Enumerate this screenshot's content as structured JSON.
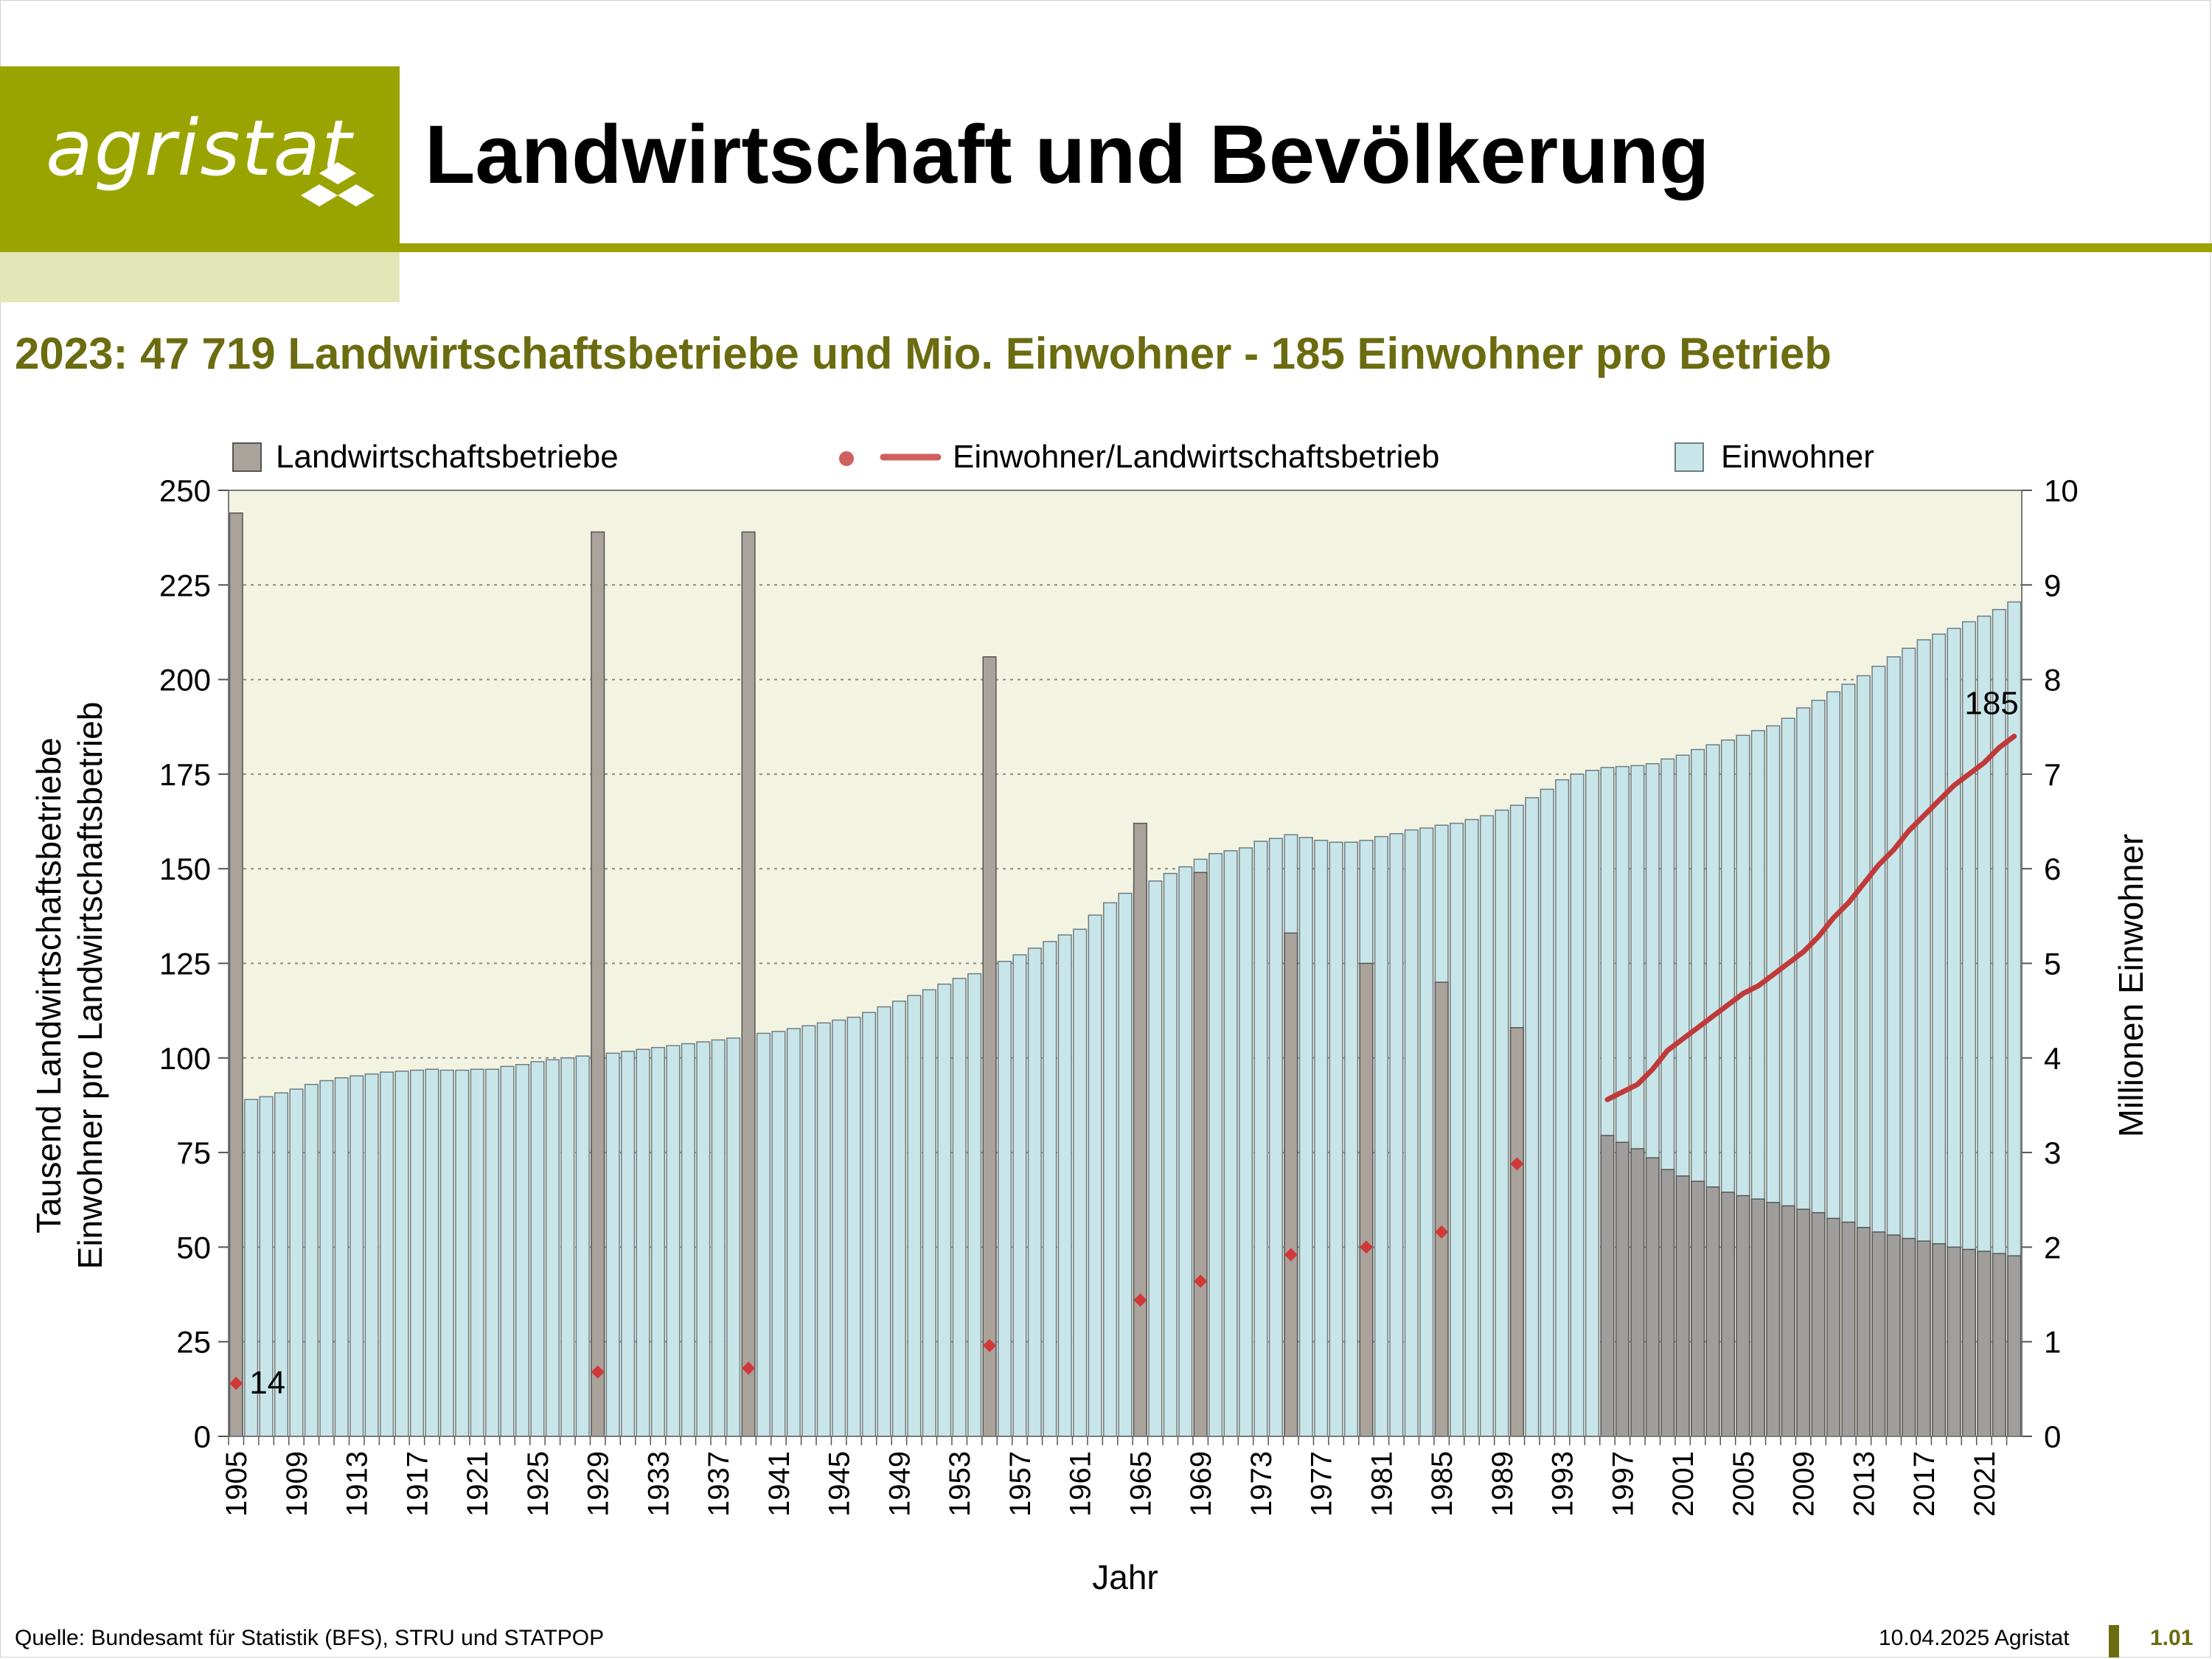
{
  "header": {
    "logo_text": "agristat",
    "title": "Landwirtschaft und Bevölkerung",
    "brand_color": "#9aa400"
  },
  "subtitle": "2023: 47 719 Landwirtschaftsbetriebe und  Mio. Einwohner - 185 Einwohner pro Betrieb",
  "footer": {
    "source": "Quelle: Bundesamt für Statistik (BFS), STRU und STATPOP",
    "date": "10.04.2025 Agristat",
    "page_number": "1.01"
  },
  "chart_data": {
    "type": "bar",
    "xlabel": "Jahr",
    "ylabel_left": [
      "Tausend Landwirtschaftsbetriebe",
      "Einwohner pro Landwirtschaftsbetrieb"
    ],
    "ylabel_right": "Millionen Einwohner",
    "ylim_left": [
      0,
      250
    ],
    "ylim_right": [
      0,
      10
    ],
    "yticks_left": [
      0,
      25,
      50,
      75,
      100,
      125,
      150,
      175,
      200,
      225,
      250
    ],
    "yticks_right": [
      0,
      1,
      2,
      3,
      4,
      5,
      6,
      7,
      8,
      9,
      10
    ],
    "x_range": [
      1905,
      2023
    ],
    "xticks": [
      1905,
      1909,
      1913,
      1917,
      1921,
      1925,
      1929,
      1933,
      1937,
      1941,
      1945,
      1949,
      1953,
      1957,
      1961,
      1965,
      1969,
      1973,
      1977,
      1981,
      1985,
      1989,
      1993,
      1997,
      2001,
      2005,
      2009,
      2013,
      2017,
      2021
    ],
    "grid": true,
    "plot_background": "#f3f3e2",
    "legend": [
      {
        "label": "Landwirtschaftsbetriebe",
        "marker": "square",
        "color": "#aaa39c"
      },
      {
        "label": "Einwohner/Landwirtschaftsbetrieb",
        "marker": "dot-line",
        "color": "#d06060"
      },
      {
        "label": "Einwohner",
        "marker": "square",
        "color": "#c8e6ea"
      }
    ],
    "series": [
      {
        "name": "Einwohner",
        "axis": "right",
        "color": "#c8e6ea",
        "x": [
          1905,
          1906,
          1907,
          1908,
          1909,
          1910,
          1911,
          1912,
          1913,
          1914,
          1915,
          1916,
          1917,
          1918,
          1919,
          1920,
          1921,
          1922,
          1923,
          1924,
          1925,
          1926,
          1927,
          1928,
          1929,
          1930,
          1931,
          1932,
          1933,
          1934,
          1935,
          1936,
          1937,
          1938,
          1939,
          1940,
          1941,
          1942,
          1943,
          1944,
          1945,
          1946,
          1947,
          1948,
          1949,
          1950,
          1951,
          1952,
          1953,
          1954,
          1955,
          1956,
          1957,
          1958,
          1959,
          1960,
          1961,
          1962,
          1963,
          1964,
          1965,
          1966,
          1967,
          1968,
          1969,
          1970,
          1971,
          1972,
          1973,
          1974,
          1975,
          1976,
          1977,
          1978,
          1979,
          1980,
          1981,
          1982,
          1983,
          1984,
          1985,
          1986,
          1987,
          1988,
          1989,
          1990,
          1991,
          1992,
          1993,
          1994,
          1995,
          1996,
          1997,
          1998,
          1999,
          2000,
          2001,
          2002,
          2003,
          2004,
          2005,
          2006,
          2007,
          2008,
          2009,
          2010,
          2011,
          2012,
          2013,
          2014,
          2015,
          2016,
          2017,
          2018,
          2019,
          2020,
          2021,
          2022,
          2023
        ],
        "values": [
          3.5,
          3.56,
          3.59,
          3.63,
          3.67,
          3.72,
          3.76,
          3.79,
          3.81,
          3.83,
          3.85,
          3.86,
          3.87,
          3.88,
          3.87,
          3.87,
          3.88,
          3.88,
          3.91,
          3.93,
          3.96,
          3.98,
          4.0,
          4.02,
          4.04,
          4.05,
          4.07,
          4.09,
          4.11,
          4.13,
          4.15,
          4.17,
          4.19,
          4.21,
          4.24,
          4.26,
          4.28,
          4.31,
          4.34,
          4.37,
          4.4,
          4.43,
          4.48,
          4.54,
          4.6,
          4.66,
          4.72,
          4.78,
          4.84,
          4.89,
          4.95,
          5.02,
          5.09,
          5.16,
          5.23,
          5.3,
          5.36,
          5.51,
          5.64,
          5.74,
          5.84,
          5.87,
          5.95,
          6.02,
          6.1,
          6.16,
          6.19,
          6.22,
          6.29,
          6.32,
          6.36,
          6.33,
          6.3,
          6.28,
          6.28,
          6.3,
          6.34,
          6.37,
          6.41,
          6.43,
          6.46,
          6.48,
          6.52,
          6.56,
          6.62,
          6.67,
          6.75,
          6.84,
          6.94,
          7.0,
          7.04,
          7.07,
          7.08,
          7.09,
          7.11,
          7.16,
          7.2,
          7.26,
          7.31,
          7.36,
          7.41,
          7.46,
          7.51,
          7.59,
          7.7,
          7.78,
          7.87,
          7.95,
          8.04,
          8.14,
          8.24,
          8.33,
          8.42,
          8.48,
          8.54,
          8.61,
          8.67,
          8.74,
          8.82
        ]
      },
      {
        "name": "Landwirtschaftsbetriebe",
        "axis": "left",
        "color": "#aaa39c",
        "x": [
          1905,
          1929,
          1939,
          1955,
          1965,
          1969,
          1975,
          1980,
          1985,
          1990,
          1996,
          1997,
          1998,
          1999,
          2000,
          2001,
          2002,
          2003,
          2004,
          2005,
          2006,
          2007,
          2008,
          2009,
          2010,
          2011,
          2012,
          2013,
          2014,
          2015,
          2016,
          2017,
          2018,
          2019,
          2020,
          2021,
          2022,
          2023
        ],
        "values": [
          244,
          239,
          239,
          206,
          162,
          149,
          133,
          125,
          120,
          108,
          79.5,
          77.7,
          76.0,
          73.6,
          70.5,
          68.8,
          67.4,
          65.9,
          64.5,
          63.6,
          62.7,
          61.8,
          60.9,
          60.0,
          59.1,
          57.6,
          56.6,
          55.2,
          54.0,
          53.2,
          52.3,
          51.6,
          50.9,
          50.0,
          49.4,
          48.9,
          48.3,
          47.7
        ]
      },
      {
        "name": "Einwohner/Landwirtschaftsbetrieb",
        "axis": "left",
        "color": "#c03a3a",
        "x": [
          1905,
          1929,
          1939,
          1955,
          1965,
          1969,
          1975,
          1980,
          1985,
          1990,
          1996,
          1997,
          1998,
          1999,
          2000,
          2001,
          2002,
          2003,
          2004,
          2005,
          2006,
          2007,
          2008,
          2009,
          2010,
          2011,
          2012,
          2013,
          2014,
          2015,
          2016,
          2017,
          2018,
          2019,
          2020,
          2021,
          2022,
          2023
        ],
        "values": [
          14,
          17,
          18,
          24,
          36,
          41,
          48,
          50,
          54,
          72,
          89,
          91,
          93,
          97,
          102,
          105,
          108,
          111,
          114,
          117,
          119,
          122,
          125,
          128,
          132,
          137,
          141,
          146,
          151,
          155,
          160,
          164,
          168,
          172,
          175,
          178,
          182,
          185
        ]
      }
    ],
    "annotations": [
      {
        "x": 1905,
        "label": "14"
      },
      {
        "x": 2023,
        "label": "185"
      }
    ]
  }
}
